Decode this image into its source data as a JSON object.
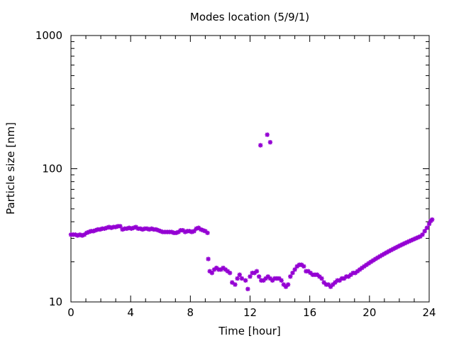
{
  "chart_data": {
    "type": "scatter",
    "title": "Modes location (5/9/1)",
    "xlabel": "Time [hour]",
    "ylabel": "Particle size [nm]",
    "xlim": [
      0,
      24
    ],
    "ylim": [
      10,
      1000
    ],
    "yscale": "log",
    "grid": false,
    "legend": "none",
    "marker_color": "#9400d3",
    "marker": "asterisk",
    "xticks": [
      0,
      4,
      8,
      12,
      16,
      20,
      24
    ],
    "xtick_labels": [
      "0",
      "4",
      "8",
      "12",
      "16",
      "20",
      "24"
    ],
    "yticks": [
      10,
      100,
      1000
    ],
    "ytick_labels": [
      "10",
      "100",
      "1000"
    ],
    "series": [
      {
        "points": [
          [
            0.0,
            32
          ],
          [
            0.15,
            32
          ],
          [
            0.3,
            32
          ],
          [
            0.45,
            31.5
          ],
          [
            0.6,
            32
          ],
          [
            0.75,
            31.5
          ],
          [
            0.9,
            32
          ],
          [
            1.05,
            33
          ],
          [
            1.2,
            33.5
          ],
          [
            1.35,
            34
          ],
          [
            1.5,
            34
          ],
          [
            1.65,
            34.5
          ],
          [
            1.8,
            35
          ],
          [
            1.95,
            35
          ],
          [
            2.1,
            35.5
          ],
          [
            2.25,
            35.5
          ],
          [
            2.4,
            36
          ],
          [
            2.55,
            36.5
          ],
          [
            2.7,
            36
          ],
          [
            2.85,
            36.5
          ],
          [
            3.0,
            36.5
          ],
          [
            3.15,
            37
          ],
          [
            3.3,
            37
          ],
          [
            3.45,
            35
          ],
          [
            3.6,
            35.5
          ],
          [
            3.75,
            35.5
          ],
          [
            3.9,
            36
          ],
          [
            4.05,
            35.5
          ],
          [
            4.2,
            36
          ],
          [
            4.35,
            36.5
          ],
          [
            4.5,
            35.5
          ],
          [
            4.65,
            35.5
          ],
          [
            4.8,
            35
          ],
          [
            4.95,
            35.5
          ],
          [
            5.1,
            35.5
          ],
          [
            5.25,
            35
          ],
          [
            5.4,
            35.5
          ],
          [
            5.55,
            35
          ],
          [
            5.7,
            35
          ],
          [
            5.85,
            34.5
          ],
          [
            6.0,
            34
          ],
          [
            6.15,
            33.5
          ],
          [
            6.3,
            33.5
          ],
          [
            6.45,
            33.5
          ],
          [
            6.6,
            33.5
          ],
          [
            6.75,
            33.5
          ],
          [
            6.9,
            33
          ],
          [
            7.05,
            33
          ],
          [
            7.2,
            33.5
          ],
          [
            7.35,
            34.5
          ],
          [
            7.5,
            34.5
          ],
          [
            7.65,
            33.5
          ],
          [
            7.8,
            34
          ],
          [
            7.95,
            34
          ],
          [
            8.1,
            33.5
          ],
          [
            8.25,
            34
          ],
          [
            8.4,
            35.5
          ],
          [
            8.55,
            36
          ],
          [
            8.7,
            35
          ],
          [
            8.85,
            34.5
          ],
          [
            9.0,
            34
          ],
          [
            9.15,
            33
          ],
          [
            9.2,
            21
          ],
          [
            9.3,
            17
          ],
          [
            9.45,
            16.5
          ],
          [
            9.6,
            17.5
          ],
          [
            9.75,
            18
          ],
          [
            9.9,
            17.5
          ],
          [
            10.05,
            17.5
          ],
          [
            10.2,
            18
          ],
          [
            10.35,
            17.5
          ],
          [
            10.5,
            17
          ],
          [
            10.65,
            16.5
          ],
          [
            10.8,
            14
          ],
          [
            11.0,
            13.5
          ],
          [
            11.15,
            15
          ],
          [
            11.3,
            16
          ],
          [
            11.45,
            15
          ],
          [
            11.7,
            14.5
          ],
          [
            11.85,
            12.5
          ],
          [
            12.0,
            15.5
          ],
          [
            12.15,
            16.5
          ],
          [
            12.3,
            16.5
          ],
          [
            12.45,
            17
          ],
          [
            12.6,
            15.5
          ],
          [
            12.75,
            14.5
          ],
          [
            12.9,
            14.5
          ],
          [
            13.05,
            15
          ],
          [
            13.2,
            15.5
          ],
          [
            13.35,
            15
          ],
          [
            13.5,
            14.5
          ],
          [
            13.65,
            15
          ],
          [
            13.8,
            15
          ],
          [
            13.95,
            15
          ],
          [
            14.1,
            14.5
          ],
          [
            14.25,
            13.5
          ],
          [
            14.4,
            13
          ],
          [
            14.55,
            13.5
          ],
          [
            12.7,
            150
          ],
          [
            13.15,
            180
          ],
          [
            13.35,
            158
          ],
          [
            14.7,
            15.5
          ],
          [
            14.85,
            16.5
          ],
          [
            15.0,
            17.5
          ],
          [
            15.15,
            18.5
          ],
          [
            15.3,
            19
          ],
          [
            15.45,
            19
          ],
          [
            15.6,
            18.5
          ],
          [
            15.75,
            17
          ],
          [
            15.9,
            17
          ],
          [
            16.05,
            16.5
          ],
          [
            16.2,
            16
          ],
          [
            16.35,
            16
          ],
          [
            16.5,
            16
          ],
          [
            16.65,
            15.5
          ],
          [
            16.8,
            15
          ],
          [
            16.95,
            14
          ],
          [
            17.1,
            13.5
          ],
          [
            17.25,
            13.5
          ],
          [
            17.4,
            13
          ],
          [
            17.55,
            13.5
          ],
          [
            17.7,
            14
          ],
          [
            17.85,
            14.5
          ],
          [
            18.0,
            14.5
          ],
          [
            18.15,
            15
          ],
          [
            18.3,
            15
          ],
          [
            18.45,
            15.5
          ],
          [
            18.6,
            15.5
          ],
          [
            18.75,
            16
          ],
          [
            18.9,
            16.5
          ],
          [
            19.05,
            16.5
          ],
          [
            19.2,
            17
          ],
          [
            19.35,
            17.5
          ],
          [
            19.5,
            18
          ],
          [
            19.65,
            18.5
          ],
          [
            19.8,
            19
          ],
          [
            19.95,
            19.5
          ],
          [
            20.1,
            20
          ],
          [
            20.25,
            20.5
          ],
          [
            20.4,
            21
          ],
          [
            20.55,
            21.5
          ],
          [
            20.7,
            22
          ],
          [
            20.85,
            22.5
          ],
          [
            21.0,
            23
          ],
          [
            21.15,
            23.5
          ],
          [
            21.3,
            24
          ],
          [
            21.45,
            24.5
          ],
          [
            21.6,
            25
          ],
          [
            21.75,
            25.5
          ],
          [
            21.9,
            26
          ],
          [
            22.05,
            26.5
          ],
          [
            22.2,
            27
          ],
          [
            22.35,
            27.5
          ],
          [
            22.5,
            28
          ],
          [
            22.65,
            28.5
          ],
          [
            22.8,
            29
          ],
          [
            22.95,
            29.5
          ],
          [
            23.1,
            30
          ],
          [
            23.25,
            30.5
          ],
          [
            23.4,
            31
          ],
          [
            23.55,
            32
          ],
          [
            23.7,
            34
          ],
          [
            23.85,
            36
          ],
          [
            24.0,
            38.5
          ],
          [
            24.1,
            40.5
          ],
          [
            24.2,
            41.5
          ]
        ]
      }
    ]
  }
}
